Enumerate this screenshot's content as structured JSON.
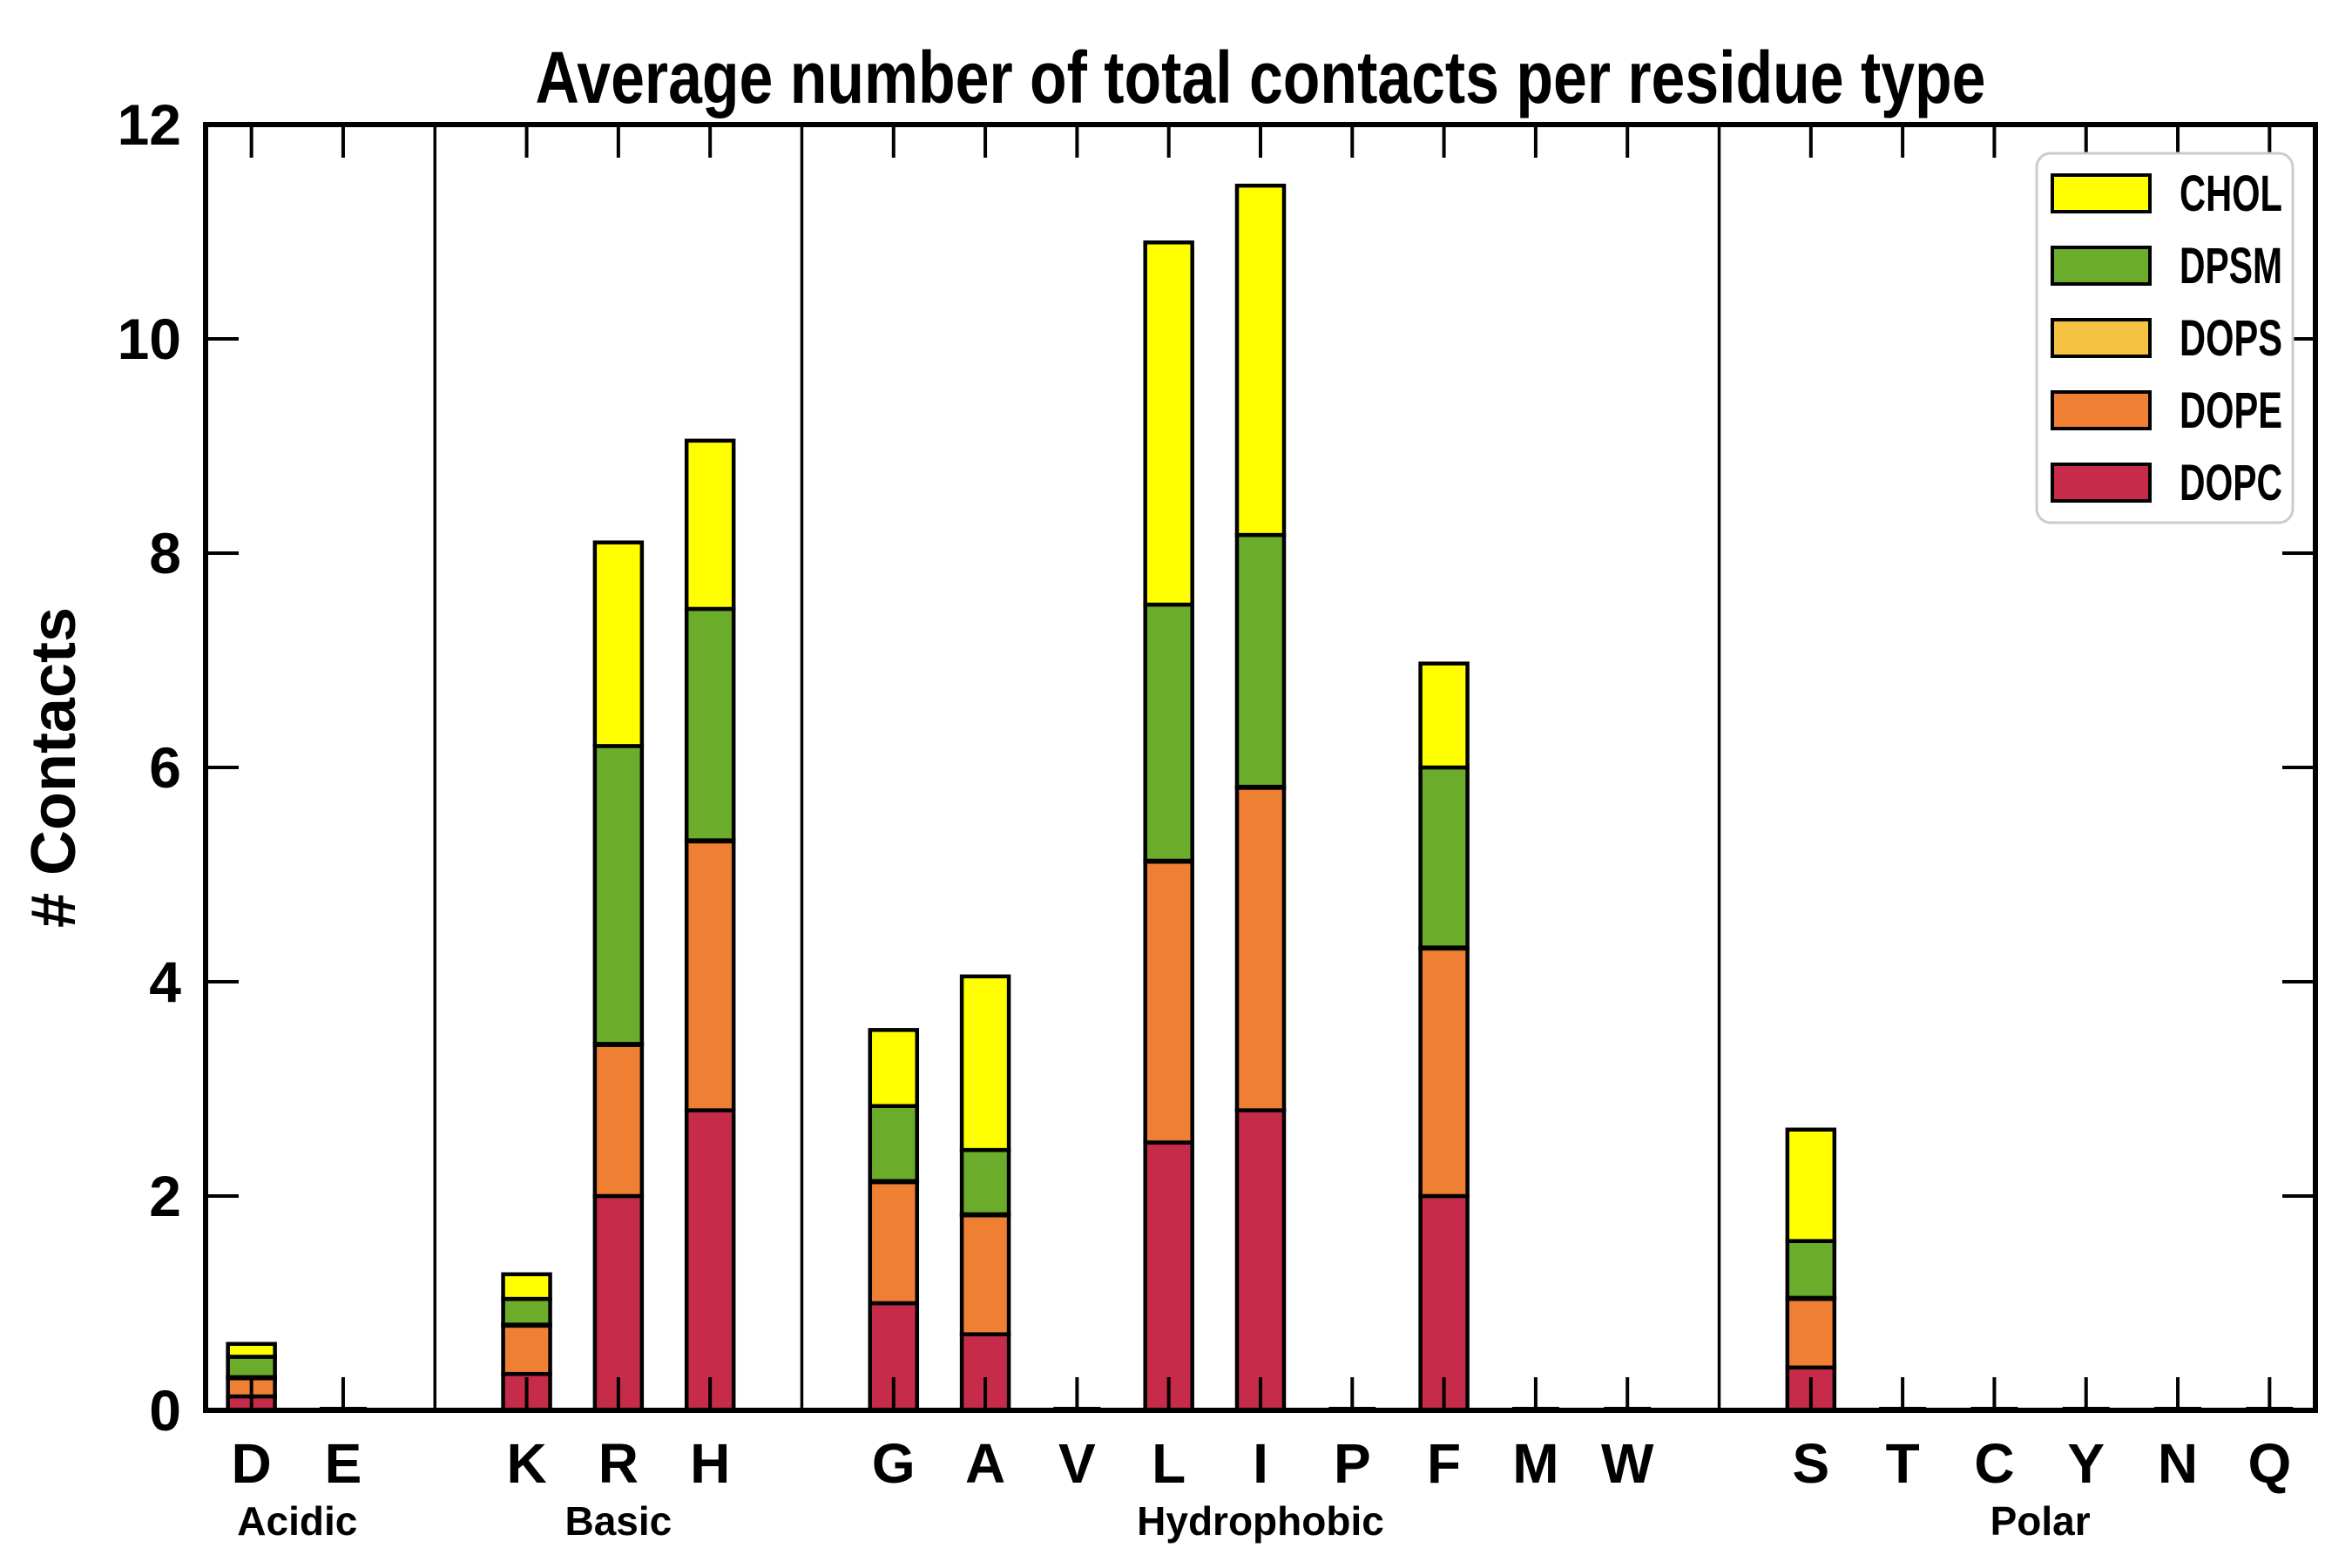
{
  "chart_data": {
    "type": "bar",
    "subtype": "stacked-vertical",
    "title": "Average number of total contacts per residue type",
    "xlabel": "",
    "ylabel": "# Contacts",
    "ylim": [
      0,
      12
    ],
    "yticks": [
      0,
      2,
      4,
      6,
      8,
      10,
      12
    ],
    "grid": false,
    "legend_position": "upper right",
    "legend_top_to_bottom": [
      "CHOL",
      "DPSM",
      "DOPS",
      "DOPE",
      "DOPC"
    ],
    "series_bottom_to_top": [
      "DOPC",
      "DOPE",
      "DOPS",
      "DPSM",
      "CHOL"
    ],
    "colors": {
      "DOPC": "#C62B49",
      "DOPE": "#EE7F33",
      "DOPS": "#F5C242",
      "DPSM": "#6BAC2A",
      "CHOL": "#FFFF00",
      "bar_edge": "#000000",
      "axis": "#000000",
      "legend_border": "#CCCCCC",
      "background": "#FFFFFF"
    },
    "groups": [
      {
        "name": "Acidic",
        "residues": [
          {
            "label": "D",
            "values": {
              "DOPC": 0.13,
              "DOPE": 0.17,
              "DOPS": 0.01,
              "DPSM": 0.19,
              "CHOL": 0.12
            }
          },
          {
            "label": "E",
            "values": {
              "DOPC": 0.01,
              "DOPE": 0,
              "DOPS": 0,
              "DPSM": 0,
              "CHOL": 0
            }
          }
        ]
      },
      {
        "name": "Basic",
        "residues": [
          {
            "label": "K",
            "values": {
              "DOPC": 0.34,
              "DOPE": 0.45,
              "DOPS": 0.01,
              "DPSM": 0.24,
              "CHOL": 0.23
            }
          },
          {
            "label": "R",
            "values": {
              "DOPC": 2.0,
              "DOPE": 1.41,
              "DOPS": 0.01,
              "DPSM": 2.78,
              "CHOL": 1.9
            }
          },
          {
            "label": "H",
            "values": {
              "DOPC": 2.8,
              "DOPE": 2.51,
              "DOPS": 0.01,
              "DPSM": 2.16,
              "CHOL": 1.57
            }
          }
        ]
      },
      {
        "name": "Hydrophobic",
        "residues": [
          {
            "label": "G",
            "values": {
              "DOPC": 1.0,
              "DOPE": 1.13,
              "DOPS": 0.01,
              "DPSM": 0.7,
              "CHOL": 0.71
            }
          },
          {
            "label": "A",
            "values": {
              "DOPC": 0.71,
              "DOPE": 1.11,
              "DOPS": 0.01,
              "DPSM": 0.6,
              "CHOL": 1.62
            }
          },
          {
            "label": "V",
            "values": {
              "DOPC": 0.01,
              "DOPE": 0,
              "DOPS": 0,
              "DPSM": 0,
              "CHOL": 0
            }
          },
          {
            "label": "L",
            "values": {
              "DOPC": 2.5,
              "DOPE": 2.62,
              "DOPS": 0.01,
              "DPSM": 2.39,
              "CHOL": 3.38
            }
          },
          {
            "label": "I",
            "values": {
              "DOPC": 2.8,
              "DOPE": 3.01,
              "DOPS": 0.01,
              "DPSM": 2.35,
              "CHOL": 3.26
            }
          },
          {
            "label": "P",
            "values": {
              "DOPC": 0.01,
              "DOPE": 0,
              "DOPS": 0,
              "DPSM": 0,
              "CHOL": 0
            }
          },
          {
            "label": "F",
            "values": {
              "DOPC": 2.0,
              "DOPE": 2.31,
              "DOPS": 0.01,
              "DPSM": 1.68,
              "CHOL": 0.97
            }
          },
          {
            "label": "M",
            "values": {
              "DOPC": 0.01,
              "DOPE": 0,
              "DOPS": 0,
              "DPSM": 0,
              "CHOL": 0
            }
          },
          {
            "label": "W",
            "values": {
              "DOPC": 0.02,
              "DOPE": 0,
              "DOPS": 0,
              "DPSM": 0,
              "CHOL": 0
            }
          }
        ]
      },
      {
        "name": "Polar",
        "residues": [
          {
            "label": "S",
            "values": {
              "DOPC": 0.4,
              "DOPE": 0.64,
              "DOPS": 0.01,
              "DPSM": 0.53,
              "CHOL": 1.04
            }
          },
          {
            "label": "T",
            "values": {
              "DOPC": 0.01,
              "DOPE": 0,
              "DOPS": 0,
              "DPSM": 0,
              "CHOL": 0
            }
          },
          {
            "label": "C",
            "values": {
              "DOPC": 0.01,
              "DOPE": 0,
              "DOPS": 0,
              "DPSM": 0,
              "CHOL": 0
            }
          },
          {
            "label": "Y",
            "values": {
              "DOPC": 0.01,
              "DOPE": 0,
              "DOPS": 0,
              "DPSM": 0,
              "CHOL": 0
            }
          },
          {
            "label": "N",
            "values": {
              "DOPC": 0.01,
              "DOPE": 0,
              "DOPS": 0,
              "DPSM": 0,
              "CHOL": 0
            }
          },
          {
            "label": "Q",
            "values": {
              "DOPC": 0.01,
              "DOPE": 0,
              "DOPS": 0,
              "DPSM": 0,
              "CHOL": 0
            }
          }
        ]
      }
    ]
  }
}
